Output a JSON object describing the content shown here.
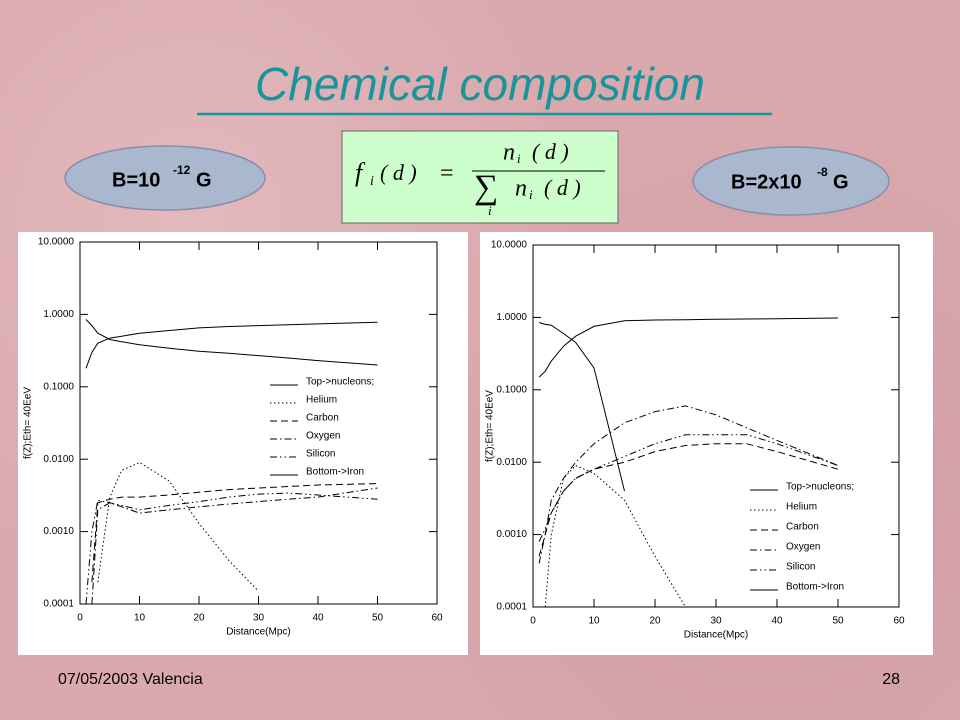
{
  "slide": {
    "title": "Chemical composition",
    "date": "07/05/2003 Valencia",
    "page_number": "28"
  },
  "field_left": {
    "prefix": "B=10",
    "exponent": "-12",
    "unit": "G"
  },
  "field_right": {
    "prefix": "B=2x10",
    "exponent": "-8",
    "unit": "G"
  },
  "formula": {
    "lhs": "f",
    "lhs_sub": "i",
    "lhs_arg": "( d )",
    "equals": "=",
    "num": "n",
    "num_sub": "i",
    "num_arg": "( d )",
    "sum": "∑",
    "sum_sub": "i",
    "den": "n",
    "den_sub": "i",
    "den_arg": "( d )"
  },
  "chart_data": [
    {
      "type": "line",
      "xlabel": "Distance(Mpc)",
      "ylabel": "f(Z);Eth= 40EeV",
      "log_y": true,
      "legend": "right",
      "xlim": [
        0,
        60
      ],
      "xticks": [
        0,
        10,
        20,
        30,
        40,
        50,
        60
      ],
      "ylim": [
        0.0001,
        10
      ],
      "yticks": [
        {
          "value": 10,
          "label": "10.0000"
        },
        {
          "value": 1,
          "label": "1.0000"
        },
        {
          "value": 0.1,
          "label": "0.1000"
        },
        {
          "value": 0.01,
          "label": "0.0100"
        },
        {
          "value": 0.001,
          "label": "0.0010"
        },
        {
          "value": 0.0001,
          "label": "0.0001"
        }
      ],
      "x": [
        1,
        2,
        3,
        5,
        7,
        10,
        15,
        20,
        25,
        30,
        35,
        40,
        50
      ],
      "series": [
        {
          "name": "Top->nucleons;",
          "color": "#000000",
          "line_style": "solid",
          "values": [
            0.18,
            0.3,
            0.4,
            0.47,
            0.5,
            0.55,
            0.6,
            0.65,
            0.68,
            0.7,
            0.72,
            0.74,
            0.78
          ]
        },
        {
          "name": "Helium",
          "color": "#000000",
          "line_style": "dotted",
          "values": [
            null,
            null,
            0.0002,
            0.003,
            0.007,
            0.009,
            0.005,
            0.0013,
            0.0004,
            0.00015,
            null,
            null,
            null
          ]
        },
        {
          "name": "Carbon",
          "color": "#000000",
          "line_style": "dashed",
          "values": [
            null,
            0.0002,
            0.0025,
            0.0028,
            0.003,
            0.003,
            0.0032,
            0.0035,
            0.0038,
            0.004,
            0.0042,
            0.0044,
            0.0046
          ]
        },
        {
          "name": "Oxygen",
          "color": "#000000",
          "line_style": "dashdot",
          "values": [
            null,
            0.0001,
            0.002,
            0.0025,
            0.0022,
            0.0018,
            0.002,
            0.0022,
            0.0024,
            0.0026,
            0.0028,
            0.003,
            0.004
          ]
        },
        {
          "name": "Silicon",
          "color": "#000000",
          "line_style": "dashdotdot",
          "values": [
            0.0001,
            0.001,
            0.0027,
            0.0025,
            0.0023,
            0.002,
            0.0023,
            0.0026,
            0.003,
            0.0033,
            0.0034,
            0.0032,
            0.0028
          ]
        },
        {
          "name": "Bottom->Iron",
          "color": "#000000",
          "line_style": "solid",
          "values": [
            0.85,
            0.7,
            0.55,
            0.45,
            0.42,
            0.38,
            0.34,
            0.31,
            0.29,
            0.27,
            0.25,
            0.23,
            0.2
          ]
        }
      ]
    },
    {
      "type": "line",
      "xlabel": "Distance(Mpc)",
      "ylabel": "f(Z);Eth= 40EeV",
      "log_y": true,
      "legend": "lower right",
      "xlim": [
        0,
        60
      ],
      "xticks": [
        0,
        10,
        20,
        30,
        40,
        50,
        60
      ],
      "ylim": [
        0.0001,
        10
      ],
      "yticks": [
        {
          "value": 10,
          "label": "10.0000"
        },
        {
          "value": 1,
          "label": "1.0000"
        },
        {
          "value": 0.1,
          "label": "0.1000"
        },
        {
          "value": 0.01,
          "label": "0.0100"
        },
        {
          "value": 0.001,
          "label": "0.0010"
        },
        {
          "value": 0.0001,
          "label": "0.0001"
        }
      ],
      "x": [
        1,
        2,
        3,
        5,
        7,
        10,
        15,
        20,
        25,
        30,
        35,
        40,
        50
      ],
      "series": [
        {
          "name": "Top->nucleons;",
          "color": "#000000",
          "line_style": "solid",
          "values": [
            0.15,
            0.18,
            0.25,
            0.4,
            0.55,
            0.75,
            0.9,
            0.92,
            0.93,
            0.94,
            0.95,
            0.96,
            0.98
          ]
        },
        {
          "name": "Helium",
          "color": "#000000",
          "line_style": "dotted",
          "values": [
            null,
            0.0001,
            0.001,
            0.006,
            0.009,
            0.007,
            0.003,
            0.0005,
            0.0001,
            null,
            null,
            null,
            null
          ]
        },
        {
          "name": "Carbon",
          "color": "#000000",
          "line_style": "dashed",
          "values": [
            0.0005,
            0.001,
            0.002,
            0.004,
            0.006,
            0.008,
            0.01,
            0.014,
            0.017,
            0.018,
            0.018,
            0.014,
            0.008
          ]
        },
        {
          "name": "Oxygen",
          "color": "#000000",
          "line_style": "dashdot",
          "values": [
            0.0004,
            0.001,
            0.003,
            0.006,
            0.01,
            0.018,
            0.035,
            0.05,
            0.06,
            0.045,
            0.03,
            0.02,
            0.009
          ]
        },
        {
          "name": "Silicon",
          "color": "#000000",
          "line_style": "dashdotdot",
          "values": [
            0.0008,
            0.0012,
            0.002,
            0.004,
            0.006,
            0.008,
            0.012,
            0.018,
            0.024,
            0.024,
            0.024,
            0.018,
            0.009
          ]
        },
        {
          "name": "Bottom->Iron",
          "color": "#000000",
          "line_style": "solid",
          "values": [
            0.85,
            0.8,
            0.78,
            0.6,
            0.45,
            0.2,
            0.004,
            null,
            null,
            null,
            null,
            null,
            null
          ]
        }
      ]
    }
  ]
}
